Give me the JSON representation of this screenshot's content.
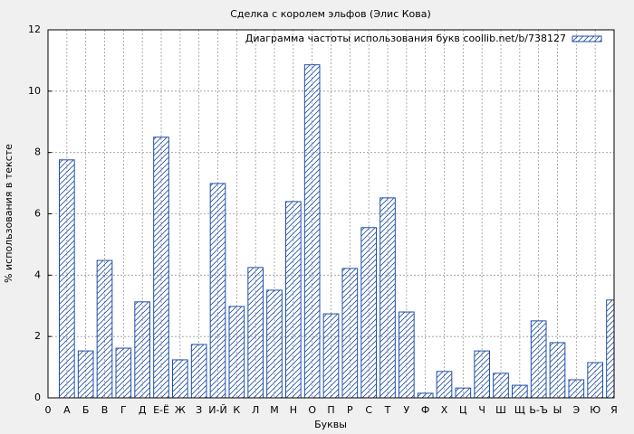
{
  "chart_data": {
    "type": "bar",
    "title": "Сделка с королем эльфов (Элис Кова)",
    "x_label": "Буквы",
    "y_label": "% использования в тексте",
    "categories": [
      "0",
      "А",
      "Б",
      "В",
      "Г",
      "Д",
      "Е-Ё",
      "Ж",
      "З",
      "И-Й",
      "К",
      "Л",
      "М",
      "Н",
      "О",
      "П",
      "Р",
      "С",
      "Т",
      "У",
      "Ф",
      "Х",
      "Ц",
      "Ч",
      "Ш",
      "Щ",
      "Ь-Ъ",
      "Ы",
      "Э",
      "Ю",
      "Я"
    ],
    "series": [
      {
        "name": "Диаграмма частоты использования букв coollib.net/b/738127",
        "color": "#1f4fa8",
        "values": [
          null,
          7.76,
          1.53,
          4.48,
          1.62,
          3.13,
          8.5,
          1.24,
          1.74,
          6.99,
          2.98,
          4.25,
          3.51,
          6.4,
          10.86,
          2.74,
          4.22,
          5.55,
          6.52,
          2.8,
          0.15,
          0.86,
          0.32,
          1.53,
          0.8,
          0.41,
          2.51,
          1.8,
          0.59,
          1.15,
          3.19
        ]
      }
    ],
    "ylim": [
      0,
      12
    ],
    "yticks": [
      0,
      2,
      4,
      6,
      8,
      10,
      12
    ],
    "grid": true,
    "legend": "upper right"
  }
}
